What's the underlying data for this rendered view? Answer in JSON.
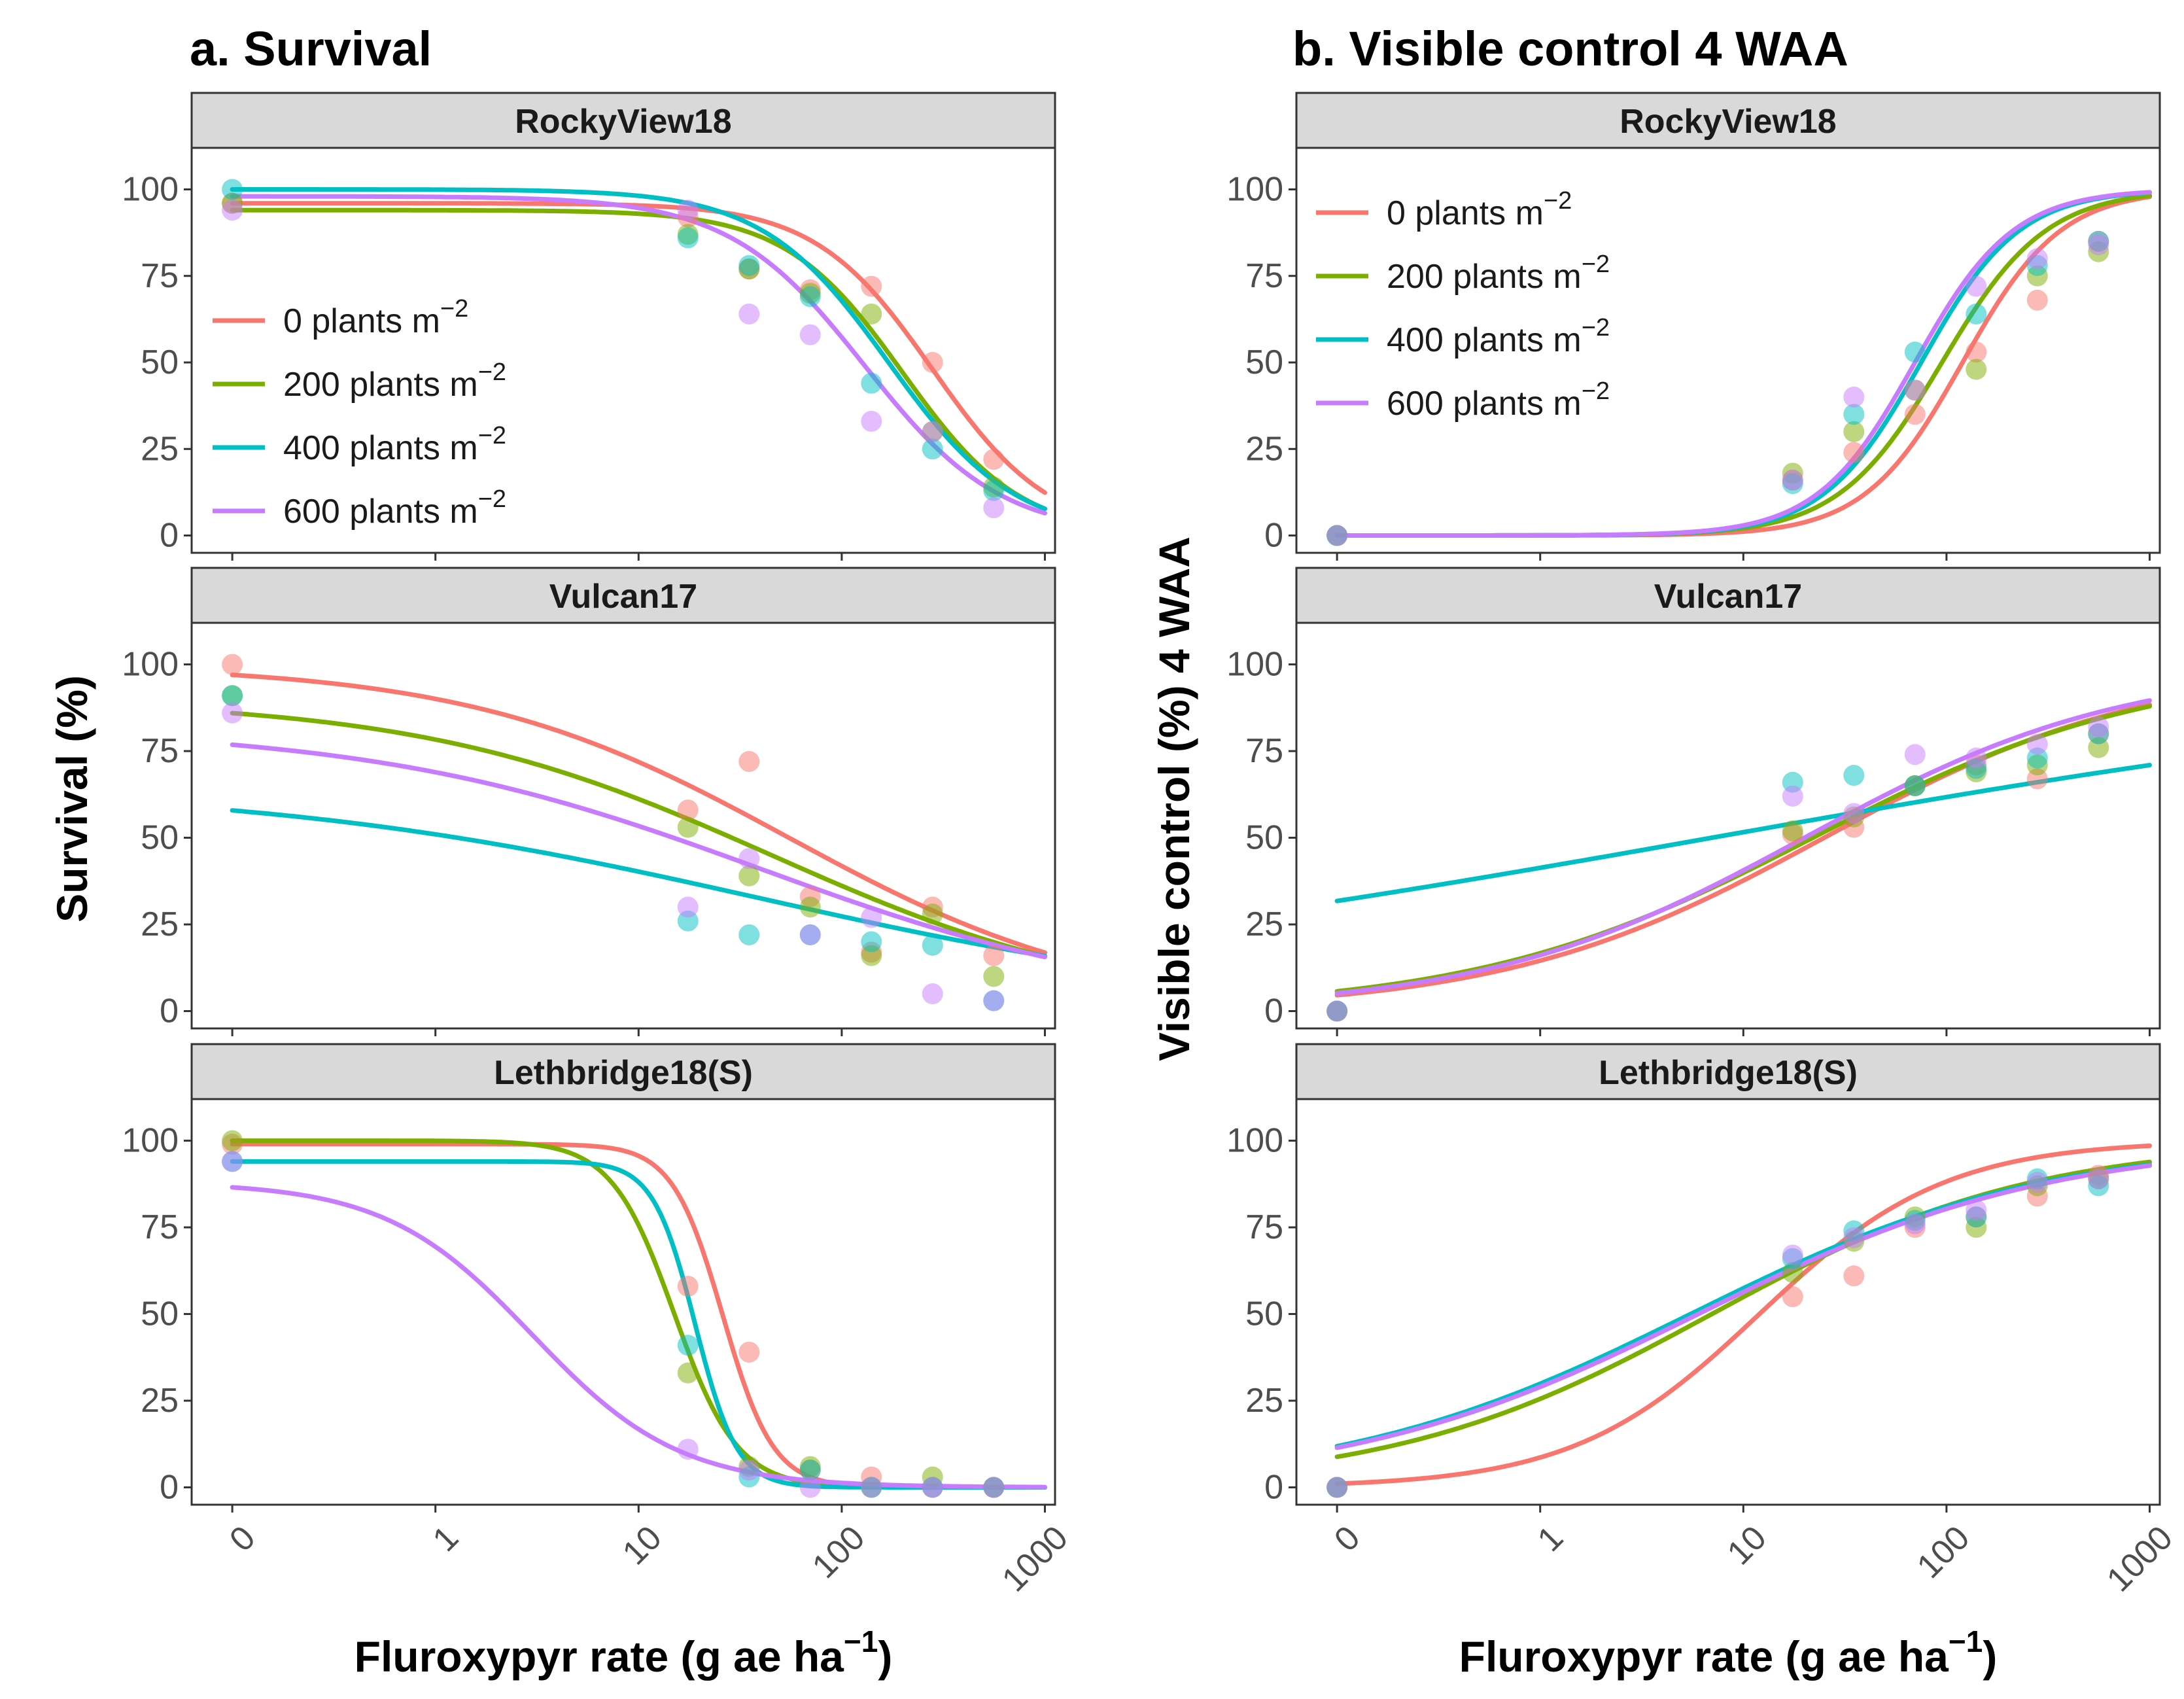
{
  "figure": {
    "x_axis_title": "Fluroxypyr rate (g ae ha",
    "x_axis_title_sup": "−1",
    "x_axis_title_end": ")"
  },
  "colors": {
    "0": "#F8766D",
    "200": "#7CAE00",
    "400": "#00BFC4",
    "600": "#C77CFF"
  },
  "legend": {
    "unit": "plants  m",
    "unit_sup": "−2",
    "entries": [
      {
        "density": "0",
        "label": "0"
      },
      {
        "density": "200",
        "label": "200"
      },
      {
        "density": "400",
        "label": "400"
      },
      {
        "density": "600",
        "label": "600"
      }
    ]
  },
  "chart_data": [
    {
      "type": "scatter",
      "title": "a. Survival",
      "ylabel": "Survival (%)",
      "xlabel": "Fluroxypyr rate (g ae ha−1)",
      "x_ticks": [
        "0",
        "1",
        "10",
        "100",
        "1000"
      ],
      "x_scale": "log (0 plotted at 0.1)",
      "y_ticks": [
        "0",
        "25",
        "50",
        "75",
        "100"
      ],
      "ylim": [
        -5,
        112
      ],
      "legend_panel": "RockyView18",
      "legend_position": "center-left",
      "doses": [
        0,
        17.5,
        35,
        70,
        140,
        280,
        560
      ],
      "panels": [
        {
          "name": "RockyView18",
          "fits": {
            "0": {
              "c": 0,
              "d": 96,
              "e": 280,
              "b": 1.5
            },
            "200": {
              "c": 0,
              "d": 94,
              "e": 200,
              "b": 1.5
            },
            "400": {
              "c": 0,
              "d": 100,
              "e": 170,
              "b": 1.4
            },
            "600": {
              "c": 0,
              "d": 98,
              "e": 130,
              "b": 1.3
            }
          },
          "points": {
            "0": [
              96,
              92,
              77,
              71,
              72,
              50,
              22
            ],
            "200": [
              96,
              87,
              77,
              70,
              64,
              30,
              14
            ],
            "400": [
              100,
              86,
              78,
              69,
              44,
              25,
              13
            ],
            "600": [
              94,
              94,
              64,
              58,
              33,
              30,
              8
            ]
          }
        },
        {
          "name": "Vulcan17",
          "fits": {
            "0": {
              "c": 0,
              "d": 100,
              "e": 55,
              "b": 0.55
            },
            "200": {
              "c": 0,
              "d": 90,
              "e": 45,
              "b": 0.5
            },
            "400": {
              "c": 0,
              "d": 65,
              "e": 40,
              "b": 0.35
            },
            "600": {
              "c": 0,
              "d": 82,
              "e": 40,
              "b": 0.45
            }
          },
          "points": {
            "0": [
              100,
              58,
              72,
              33,
              17,
              30,
              16
            ],
            "200": [
              91,
              53,
              39,
              30,
              16,
              28,
              10
            ],
            "400": [
              91,
              26,
              22,
              22,
              20,
              19,
              3
            ],
            "600": [
              86,
              30,
              44,
              22,
              27,
              5,
              3
            ]
          }
        },
        {
          "name": "Lethbridge18(S)",
          "fits": {
            "0": {
              "c": 0,
              "d": 99,
              "e": 26,
              "b": 3.5
            },
            "200": {
              "c": 0,
              "d": 100,
              "e": 15,
              "b": 2.8
            },
            "400": {
              "c": 0,
              "d": 94,
              "e": 19,
              "b": 4.2
            },
            "600": {
              "c": 0,
              "d": 88,
              "e": 3,
              "b": 1.2
            }
          },
          "points": {
            "0": [
              99,
              58,
              39,
              5,
              3,
              0,
              0
            ],
            "200": [
              100,
              33,
              6,
              6,
              0,
              3,
              0
            ],
            "400": [
              94,
              41,
              3,
              5,
              0,
              0,
              0
            ],
            "600": [
              94,
              11,
              5,
              0,
              0,
              0,
              0
            ]
          }
        }
      ]
    },
    {
      "type": "scatter",
      "title": "b. Visible control 4 WAA",
      "ylabel": "Visible control (%) 4 WAA",
      "xlabel": "Fluroxypyr rate (g ae ha−1)",
      "x_ticks": [
        "0",
        "1",
        "10",
        "100",
        "1000"
      ],
      "x_scale": "log (0 plotted at 0.1)",
      "y_ticks": [
        "0",
        "25",
        "50",
        "75",
        "100"
      ],
      "ylim": [
        -5,
        112
      ],
      "legend_panel": "RockyView18",
      "legend_position": "top-left",
      "doses": [
        0,
        17.5,
        35,
        70,
        140,
        280,
        560
      ],
      "panels": [
        {
          "name": "RockyView18",
          "fits": {
            "0": {
              "c": 0,
              "d": 100,
              "e": 120,
              "b": 1.8
            },
            "200": {
              "c": 0,
              "d": 100,
              "e": 95,
              "b": 1.7
            },
            "400": {
              "c": 0,
              "d": 100,
              "e": 75,
              "b": 1.8
            },
            "600": {
              "c": 0,
              "d": 100,
              "e": 70,
              "b": 1.8
            }
          },
          "points": {
            "0": [
              0,
              16,
              24,
              35,
              53,
              68,
              85
            ],
            "200": [
              0,
              18,
              30,
              42,
              48,
              75,
              82
            ],
            "400": [
              0,
              15,
              35,
              53,
              64,
              78,
              85
            ],
            "600": [
              0,
              16,
              40,
              42,
              72,
              80,
              84
            ]
          }
        },
        {
          "name": "Vulcan17",
          "fits": {
            "0": {
              "c": 0,
              "d": 100,
              "e": 25,
              "b": 0.55
            },
            "200": {
              "c": 0,
              "d": 100,
              "e": 22,
              "b": 0.52
            },
            "400": {
              "c": 0,
              "d": 100,
              "e": 7,
              "b": 0.18
            },
            "600": {
              "c": 0,
              "d": 100,
              "e": 20,
              "b": 0.55
            }
          },
          "points": {
            "0": [
              0,
              51,
              53,
              65,
              71,
              67,
              80
            ],
            "200": [
              0,
              52,
              56,
              65,
              69,
              71,
              76
            ],
            "400": [
              0,
              66,
              68,
              65,
              70,
              73,
              80
            ],
            "600": [
              0,
              62,
              57,
              74,
              73,
              77,
              82
            ]
          }
        },
        {
          "name": "Lethbridge18(S)",
          "fits": {
            "0": {
              "c": 0,
              "d": 100,
              "e": 12,
              "b": 0.95
            },
            "200": {
              "c": 0,
              "d": 100,
              "e": 7,
              "b": 0.55
            },
            "400": {
              "c": 0,
              "d": 100,
              "e": 5.5,
              "b": 0.5
            },
            "600": {
              "c": 0,
              "d": 100,
              "e": 6,
              "b": 0.5
            }
          },
          "points": {
            "0": [
              0,
              55,
              61,
              75,
              78,
              84,
              90
            ],
            "200": [
              0,
              62,
              71,
              78,
              75,
              87,
              89
            ],
            "400": [
              0,
              66,
              74,
              77,
              78,
              89,
              87
            ],
            "600": [
              0,
              67,
              72,
              76,
              80,
              88,
              89
            ]
          }
        }
      ]
    }
  ]
}
